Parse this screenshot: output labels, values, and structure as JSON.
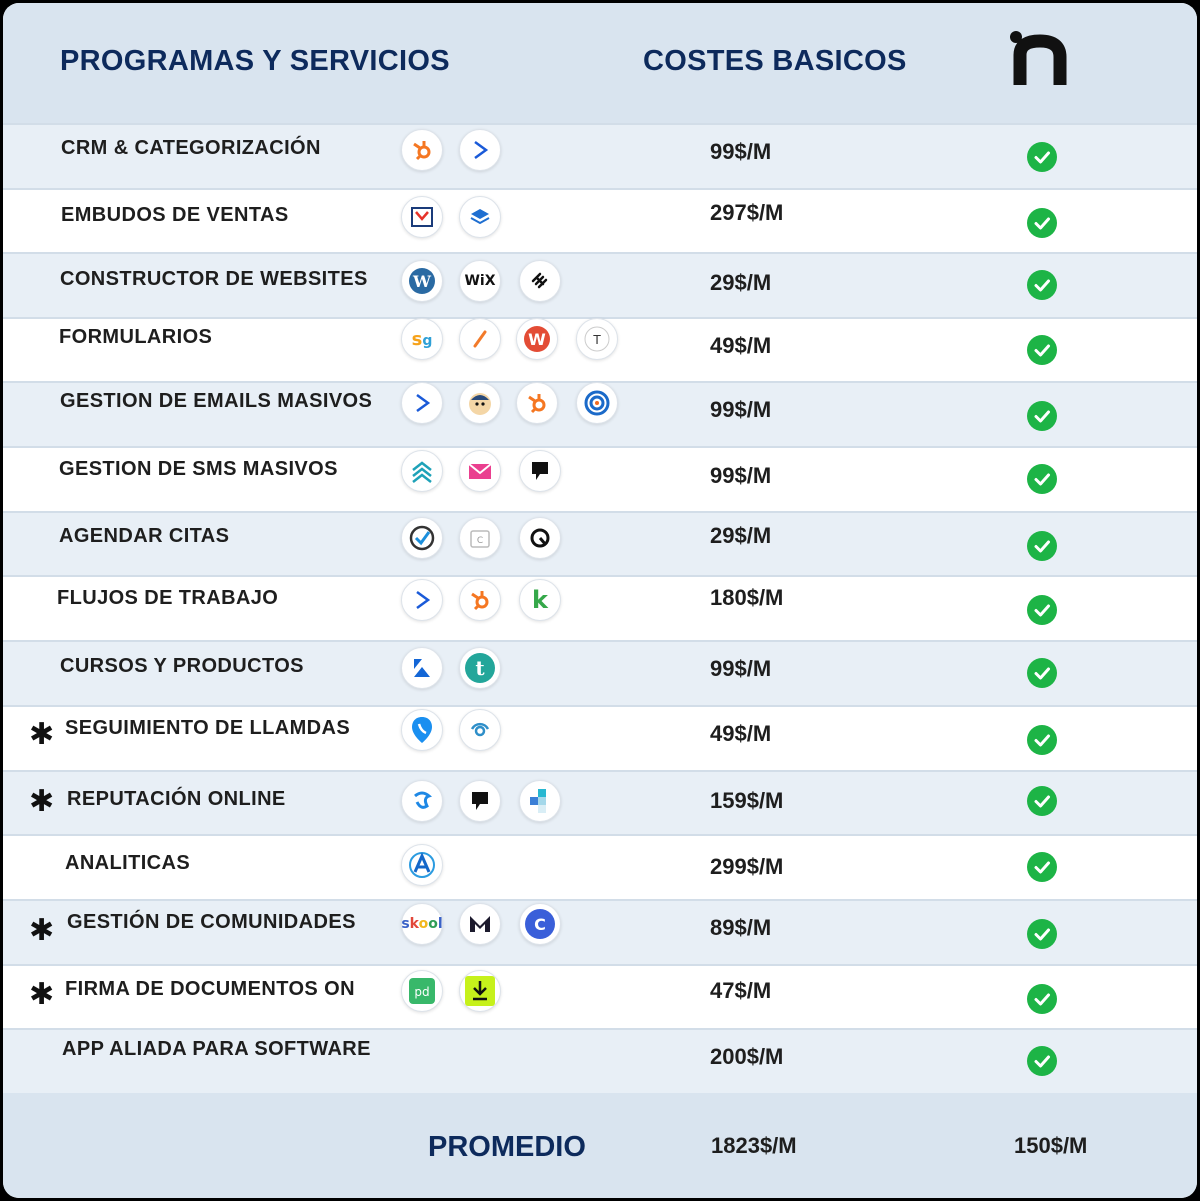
{
  "header": {
    "col1": "PROGRAMAS Y SERVICIOS",
    "col2": "COSTES BASICOS",
    "brand_icon": "n-logo-icon"
  },
  "rows": [
    {
      "label": "CRM & CATEGORIZACIÓN",
      "price": "99$/M",
      "star": "",
      "icons": [
        "hubspot-icon",
        "activecampaign-icon"
      ]
    },
    {
      "label": "EMBUDOS DE VENTAS",
      "price": "297$/M",
      "star": "",
      "icons": [
        "clickfunnels-icon",
        "layers-icon"
      ]
    },
    {
      "label": "CONSTRUCTOR DE WEBSITES",
      "price": "29$/M",
      "star": "",
      "icons": [
        "wordpress-icon",
        "wix-icon",
        "squarespace-icon"
      ]
    },
    {
      "label": "FORMULARIOS",
      "price": "49$/M",
      "star": "",
      "icons": [
        "surveygizmo-icon",
        "jotform-icon",
        "wufoo-icon",
        "typeform-icon"
      ]
    },
    {
      "label": "GESTION DE EMAILS MASIVOS",
      "price": "99$/M",
      "star": "",
      "icons": [
        "activecampaign-icon",
        "mailchimp-icon",
        "hubspot-icon",
        "constant-contact-icon"
      ]
    },
    {
      "label": "GESTION DE SMS MASIVOS",
      "price": "99$/M",
      "star": "",
      "icons": [
        "sms-wave-icon",
        "envelope-icon",
        "podium-icon"
      ]
    },
    {
      "label": "AGENDAR CITAS",
      "price": "29$/M",
      "star": "",
      "icons": [
        "acuity-icon",
        "calendly-icon",
        "schedule-icon"
      ]
    },
    {
      "label": "FLUJOS DE TRABAJO",
      "price": "180$/M",
      "star": "",
      "icons": [
        "activecampaign-icon",
        "hubspot-icon",
        "keap-icon"
      ]
    },
    {
      "label": "CURSOS Y PRODUCTOS",
      "price": "99$/M",
      "star": "",
      "icons": [
        "kajabi-icon",
        "teachable-icon"
      ]
    },
    {
      "label": "SEGUIMIENTO DE LLAMDAS",
      "price": "49$/M",
      "star": "✱",
      "icons": [
        "callrail-icon",
        "calltracking-icon"
      ]
    },
    {
      "label": "REPUTACIÓN ONLINE",
      "price": "159$/M",
      "star": "✱",
      "icons": [
        "birdeye-icon",
        "podium-icon",
        "yext-icon"
      ]
    },
    {
      "label": "ANALITICAS",
      "price": "299$/M",
      "star": "",
      "icons": [
        "analytics-icon"
      ]
    },
    {
      "label": "GESTIÓN DE COMUNIDADES",
      "price": "89$/M",
      "star": "✱",
      "icons": [
        "skool-icon",
        "mighty-icon",
        "circle-icon"
      ]
    },
    {
      "label": "FIRMA DE DOCUMENTOS ON",
      "price": "47$/M",
      "star": "✱",
      "icons": [
        "pandadoc-icon",
        "download-icon"
      ]
    },
    {
      "label": "APP ALIADA PARA SOFTWARE",
      "price": "200$/M",
      "star": "",
      "icons": []
    }
  ],
  "footer": {
    "label": "PROMEDIO",
    "total": "1823$/M",
    "brand_price": "150$/M"
  },
  "colors": {
    "navy": "#0d2a5c",
    "check": "#1db446",
    "header_bg": "#d9e4ef",
    "alt_row": "#e8eff6"
  }
}
